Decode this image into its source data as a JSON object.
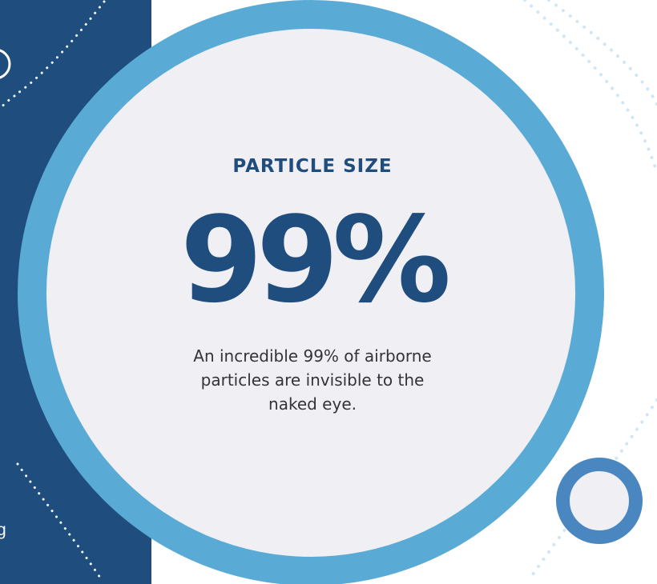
{
  "stat": {
    "title": "PARTICLE SIZE",
    "value": "99%",
    "description": "An incredible 99% of airborne particles are invisible to the naked eye."
  },
  "side_panel": {
    "fragment_text": "g"
  },
  "colors": {
    "navy": "#1f4e7e",
    "ring_light_blue": "#5aaad6",
    "ring_mid_blue": "#4a86c0",
    "disc_background": "#f0f0f4",
    "body_text": "#333338",
    "dot_light": "#cfe6f4"
  },
  "decorations": {
    "dotted_arcs": "dotted-arc-pattern",
    "accent_ring": "ring-icon"
  }
}
